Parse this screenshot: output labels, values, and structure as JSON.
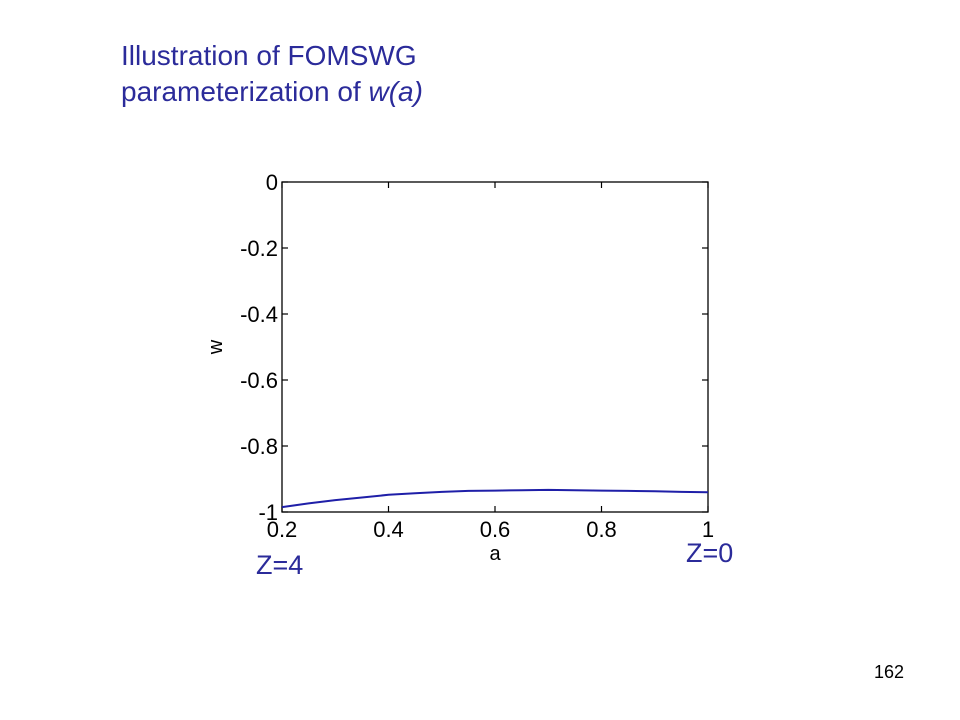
{
  "slide": {
    "title_line1": "Illustration of FOMSWG",
    "title_line2_prefix": "parameterization of ",
    "title_line2_italic": "w(a)",
    "page_number": "162"
  },
  "annotations": {
    "left": "Z=4",
    "right": "Z=0"
  },
  "colors": {
    "title": "#2b2b9a",
    "curve": "#1f1fa8"
  },
  "chart_data": {
    "type": "line",
    "xlabel": "a",
    "ylabel": "w",
    "xlim": [
      0.2,
      1
    ],
    "ylim": [
      -1,
      0
    ],
    "xticks": [
      0.2,
      0.4,
      0.6,
      0.8,
      1
    ],
    "xtick_labels": [
      "0.2",
      "0.4",
      "0.6",
      "0.8",
      "1"
    ],
    "yticks": [
      0,
      -0.2,
      -0.4,
      -0.6,
      -0.8,
      -1
    ],
    "ytick_labels": [
      "0",
      "-0.2",
      "-0.4",
      "-0.6",
      "-0.8",
      "-1"
    ],
    "grid": false,
    "series": [
      {
        "x": [
          0.2,
          0.25,
          0.3,
          0.35,
          0.4,
          0.45,
          0.5,
          0.55,
          0.6,
          0.65,
          0.7,
          0.75,
          0.8,
          0.85,
          0.9,
          0.95,
          1.0
        ],
        "y": [
          -0.985,
          -0.974,
          -0.964,
          -0.956,
          -0.948,
          -0.943,
          -0.939,
          -0.936,
          -0.935,
          -0.934,
          -0.933,
          -0.934,
          -0.935,
          -0.936,
          -0.937,
          -0.939,
          -0.94
        ]
      }
    ]
  }
}
